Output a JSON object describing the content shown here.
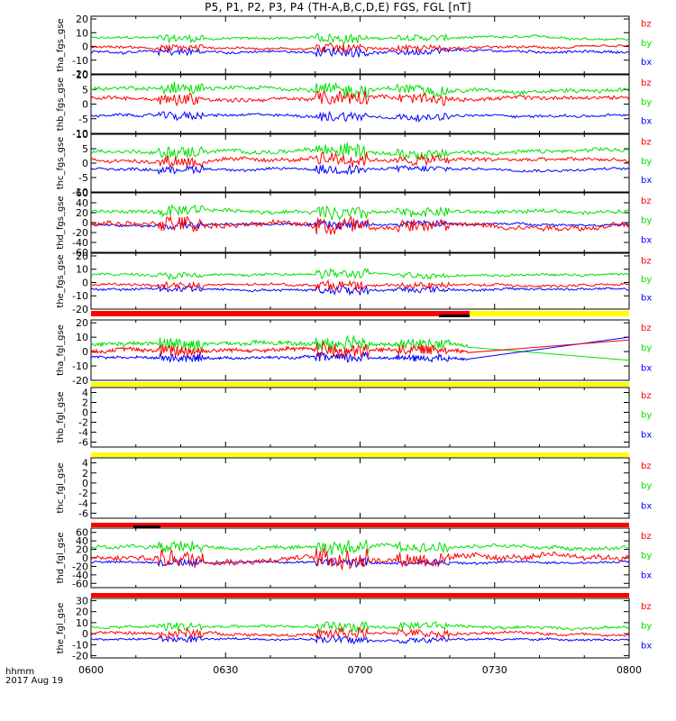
{
  "title": "P5, P1, P2, P3, P4 (TH-A,B,C,D,E) FGS, FGL [nT]",
  "footer": {
    "hhmm": "hhmm",
    "date": "2017 Aug 19"
  },
  "colors": {
    "bz": "#ff0000",
    "by": "#00e000",
    "bx": "#0000ff",
    "flag_red": "#ff0000",
    "flag_yellow": "#ffff00",
    "flag_black": "#000000"
  },
  "chart_data": {
    "type": "line",
    "x_axis": {
      "min_minutes": 0,
      "max_minutes": 120,
      "ticks": [
        "0600",
        "0630",
        "0700",
        "0730",
        "0800"
      ]
    },
    "legend": [
      "bz",
      "by",
      "bx"
    ],
    "panels": [
      {
        "label": "tha_fgs_gse",
        "ylim": [
          -20,
          22
        ],
        "ticks": [
          20,
          10,
          0,
          -10,
          -20
        ],
        "series": {
          "by": {
            "mean": 6,
            "noise": 2
          },
          "bz": {
            "mean": -1,
            "noise": 2
          },
          "bx": {
            "mean": -4,
            "noise": 2
          }
        }
      },
      {
        "label": "thb_fgs_gse",
        "ylim": [
          -10,
          10
        ],
        "ticks": [
          10,
          5,
          0,
          -5,
          -10
        ],
        "series": {
          "by": {
            "mean": 5,
            "noise": 1.5
          },
          "bz": {
            "mean": 2,
            "noise": 1.5
          },
          "bx": {
            "mean": -4,
            "noise": 1
          }
        }
      },
      {
        "label": "thc_fgs_gse",
        "ylim": [
          -10,
          10
        ],
        "ticks": [
          10,
          5,
          0,
          -5,
          -10
        ],
        "series": {
          "by": {
            "mean": 4,
            "noise": 1.5
          },
          "bz": {
            "mean": 1,
            "noise": 1.5
          },
          "bx": {
            "mean": -2,
            "noise": 1
          }
        }
      },
      {
        "label": "thd_fgs_gse",
        "ylim": [
          -60,
          60
        ],
        "ticks": [
          60,
          40,
          20,
          0,
          -20,
          -40,
          -60
        ],
        "series": {
          "by": {
            "mean": 22,
            "noise": 8
          },
          "bz": {
            "mean": -5,
            "noise": 12
          },
          "bx": {
            "mean": -3,
            "noise": 5
          }
        }
      },
      {
        "label": "the_fgs_gse",
        "ylim": [
          -20,
          22
        ],
        "ticks": [
          20,
          10,
          0,
          -10,
          -20
        ],
        "series": {
          "by": {
            "mean": 6,
            "noise": 2
          },
          "bz": {
            "mean": -2,
            "noise": 2
          },
          "bx": {
            "mean": -5,
            "noise": 2
          }
        }
      },
      {
        "label": "tha_fgl_gse",
        "ylim": [
          -20,
          22
        ],
        "ticks": [
          20,
          10,
          0,
          -10,
          -20
        ],
        "series": {
          "by": {
            "mean": 5,
            "noise": 3
          },
          "bz": {
            "mean": 1,
            "noise": 3
          },
          "bx": {
            "mean": -4,
            "noise": 2
          }
        },
        "data_end_minutes": 84
      },
      {
        "label": "thb_fgl_gse",
        "ylim": [
          -7,
          5
        ],
        "ticks": [
          4,
          2,
          0,
          -2,
          -4,
          -6
        ],
        "empty": true
      },
      {
        "label": "thc_fgl_gse",
        "ylim": [
          -7,
          5
        ],
        "ticks": [
          4,
          2,
          0,
          -2,
          -4,
          -6
        ],
        "empty": true
      },
      {
        "label": "thd_fgl_gse",
        "ylim": [
          -70,
          70
        ],
        "ticks": [
          60,
          40,
          20,
          0,
          -20,
          -40,
          -60
        ],
        "series": {
          "by": {
            "mean": 25,
            "noise": 10
          },
          "bz": {
            "mean": 0,
            "noise": 15
          },
          "bx": {
            "mean": -10,
            "noise": 6
          }
        }
      },
      {
        "label": "the_fgl_gse",
        "ylim": [
          -22,
          32
        ],
        "ticks": [
          30,
          20,
          10,
          0,
          -10,
          -20
        ],
        "series": {
          "by": {
            "mean": 6,
            "noise": 3
          },
          "bz": {
            "mean": 0,
            "noise": 3
          },
          "bx": {
            "mean": -5,
            "noise": 2
          }
        }
      }
    ]
  }
}
